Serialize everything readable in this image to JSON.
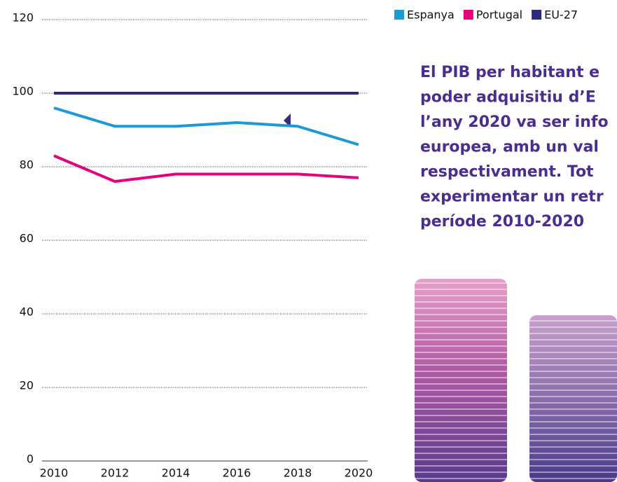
{
  "chart_data": {
    "type": "line",
    "x": [
      2010,
      2012,
      2014,
      2016,
      2018,
      2020
    ],
    "series": [
      {
        "name": "Espanya",
        "color": "#1b9ad6",
        "values": [
          96,
          91,
          91,
          92,
          91,
          86
        ]
      },
      {
        "name": "Portugal",
        "color": "#e5007e",
        "values": [
          83,
          76,
          78,
          78,
          78,
          77
        ]
      },
      {
        "name": "EU-27",
        "color": "#2e2a7a",
        "values": [
          100,
          100,
          100,
          100,
          100,
          100
        ]
      }
    ],
    "xlim": [
      2010,
      2020
    ],
    "xticks": [
      2010,
      2012,
      2014,
      2016,
      2018,
      2020
    ],
    "ylim": [
      0,
      120
    ],
    "yticks": [
      0,
      20,
      40,
      60,
      80,
      100,
      120
    ],
    "grid": true,
    "legend": "top-right",
    "annotation": [
      "El PIB per habitant e",
      "poder adquisitiu d’E",
      "l’any 2020 va ser info",
      "europea, amb un val",
      "respectivament. Tot",
      "experimentar un retr",
      "període 2010-2020"
    ]
  }
}
